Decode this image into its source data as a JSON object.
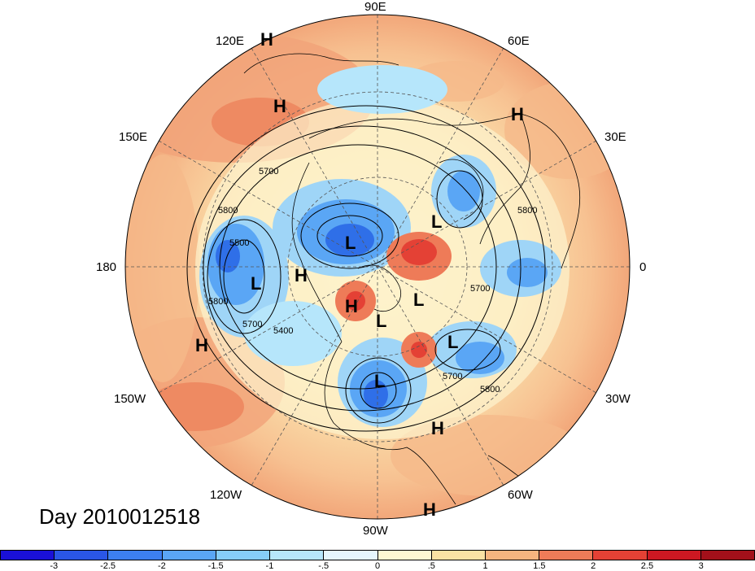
{
  "title": "Day 2010012518",
  "longitude_labels": {
    "lon_90E": "90E",
    "lon_120E": "120E",
    "lon_60E": "60E",
    "lon_150E": "150E",
    "lon_30E": "30E",
    "lon_180": "180",
    "lon_0": "0",
    "lon_150W": "150W",
    "lon_30W": "30W",
    "lon_120W": "120W",
    "lon_60W": "60W",
    "lon_90W": "90W"
  },
  "contour_labels": [
    "5700",
    "5800",
    "5500",
    "5800",
    "5400",
    "5700",
    "5800",
    "5700",
    "5800",
    "5700"
  ],
  "pressure_centers": [
    "H",
    "H",
    "H",
    "L",
    "L",
    "H",
    "L",
    "H",
    "L",
    "L",
    "L",
    "L",
    "H",
    "H",
    "H"
  ],
  "colorbar": {
    "labels": [
      "-3",
      "-2.5",
      "-2",
      "-1.5",
      "-1",
      "-.5",
      "0",
      ".5",
      "1",
      "1.5",
      "2",
      "2.5",
      "3"
    ],
    "colors": [
      "#1a10d8",
      "#2a56e6",
      "#3c7ff0",
      "#5aa6f5",
      "#86cdf9",
      "#b6e6fb",
      "#e6f6fd",
      "#fdf7d3",
      "#fae2a4",
      "#f6b57f",
      "#ee7b58",
      "#e44135",
      "#cc1822",
      "#a3101a"
    ]
  }
}
